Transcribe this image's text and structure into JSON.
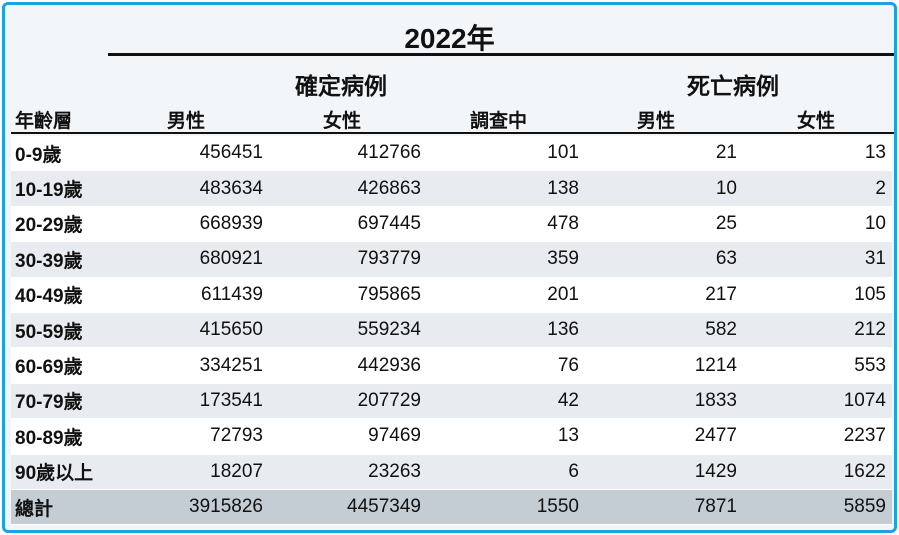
{
  "year": "2022年",
  "groups": {
    "confirmed": "確定病例",
    "deaths": "死亡病例"
  },
  "columns": {
    "age": "年齡層",
    "confirmed_male": "男性",
    "confirmed_female": "女性",
    "investigating": "調查中",
    "deaths_male": "男性",
    "deaths_female": "女性"
  },
  "rows": [
    {
      "age": "0-9歲",
      "cm": "456451",
      "cf": "412766",
      "inv": "101",
      "dm": "21",
      "df": "13"
    },
    {
      "age": "10-19歲",
      "cm": "483634",
      "cf": "426863",
      "inv": "138",
      "dm": "10",
      "df": "2"
    },
    {
      "age": "20-29歲",
      "cm": "668939",
      "cf": "697445",
      "inv": "478",
      "dm": "25",
      "df": "10"
    },
    {
      "age": "30-39歲",
      "cm": "680921",
      "cf": "793779",
      "inv": "359",
      "dm": "63",
      "df": "31"
    },
    {
      "age": "40-49歲",
      "cm": "611439",
      "cf": "795865",
      "inv": "201",
      "dm": "217",
      "df": "105"
    },
    {
      "age": "50-59歲",
      "cm": "415650",
      "cf": "559234",
      "inv": "136",
      "dm": "582",
      "df": "212"
    },
    {
      "age": "60-69歲",
      "cm": "334251",
      "cf": "442936",
      "inv": "76",
      "dm": "1214",
      "df": "553"
    },
    {
      "age": "70-79歲",
      "cm": "173541",
      "cf": "207729",
      "inv": "42",
      "dm": "1833",
      "df": "1074"
    },
    {
      "age": "80-89歲",
      "cm": "72793",
      "cf": "97469",
      "inv": "13",
      "dm": "2477",
      "df": "2237"
    },
    {
      "age": "90歲以上",
      "cm": "18207",
      "cf": "23263",
      "inv": "6",
      "dm": "1429",
      "df": "1622"
    }
  ],
  "total": {
    "age": "總計",
    "cm": "3915826",
    "cf": "4457349",
    "inv": "1550",
    "dm": "7871",
    "df": "5859"
  }
}
